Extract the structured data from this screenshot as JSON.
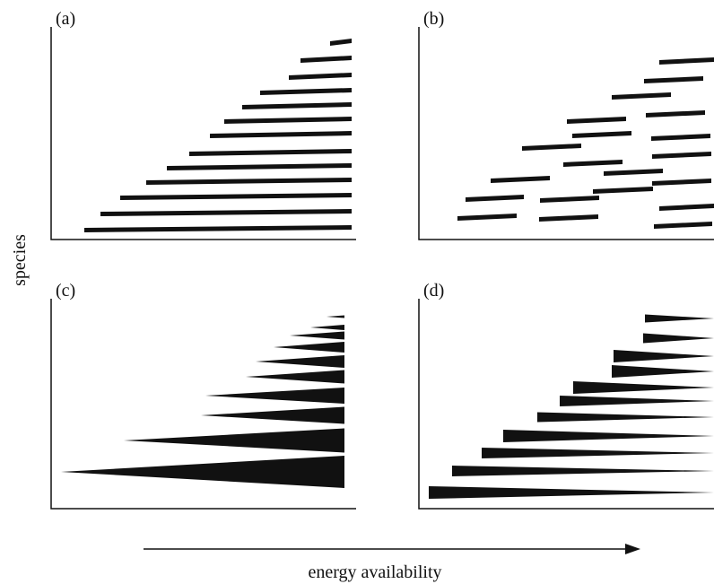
{
  "figure": {
    "y_label": "species",
    "x_label": "energy availability",
    "ink_color": "#111111"
  },
  "panels": {
    "a": {
      "label": "(a)",
      "mark": "bar"
    },
    "b": {
      "label": "(b)",
      "mark": "bar"
    },
    "c": {
      "label": "(c)",
      "mark": "wedge"
    },
    "d": {
      "label": "(d)",
      "mark": "wedge"
    }
  }
}
